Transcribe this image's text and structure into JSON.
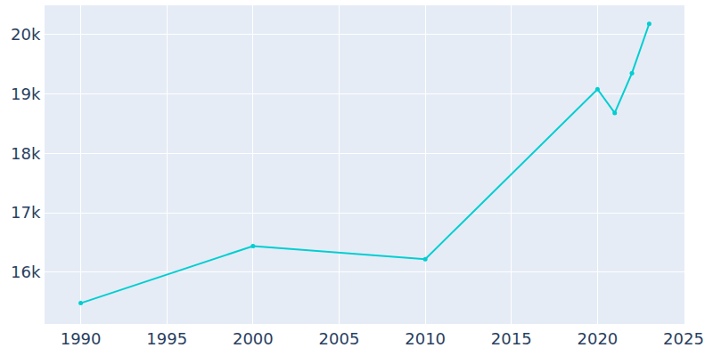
{
  "chart_data": {
    "type": "line",
    "x": [
      1990,
      2000,
      2010,
      2020,
      2021,
      2022,
      2023
    ],
    "values": [
      15480,
      16440,
      16220,
      19080,
      18680,
      19350,
      20180
    ],
    "color": "#00ced1",
    "marker": "circle",
    "xlim": [
      1987.9,
      2025.05
    ],
    "xticks": [
      1990,
      1995,
      2000,
      2005,
      2010,
      2015,
      2020,
      2025
    ],
    "ylim": [
      15130,
      20490
    ],
    "yticks": [
      {
        "value": 16000,
        "label": "16k"
      },
      {
        "value": 17000,
        "label": "17k"
      },
      {
        "value": 18000,
        "label": "18k"
      },
      {
        "value": 19000,
        "label": "19k"
      },
      {
        "value": 20000,
        "label": "20k"
      }
    ],
    "grid": true
  }
}
